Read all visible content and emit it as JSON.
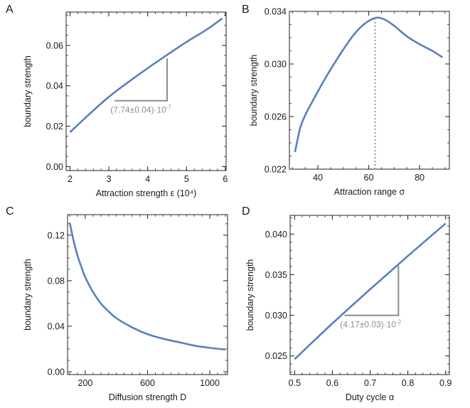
{
  "colors": {
    "curve": "#5b7fbf",
    "annotation": "#8c8c8c",
    "frame": "#222222",
    "text": "#1a1a1a"
  },
  "chart_data": [
    {
      "panel_label": "A",
      "type": "line",
      "xlabel": "Attraction strength  ε (10⁴)",
      "ylabel": "boundary strength",
      "xlim": [
        1.9,
        6.02
      ],
      "ylim": [
        -0.002,
        0.0765
      ],
      "xticks": [
        2,
        3,
        4,
        5,
        6
      ],
      "xtick_labels": [
        "2",
        "3",
        "4",
        "5",
        "6"
      ],
      "xminor": 0.2,
      "yticks": [
        0,
        0.02,
        0.04,
        0.06
      ],
      "ytick_labels": [
        "0.00",
        "0.02",
        "0.04",
        "0.06"
      ],
      "yminor": 0.005,
      "grid": false,
      "x": [
        2.0,
        2.5,
        3.0,
        3.5,
        4.0,
        4.5,
        5.0,
        5.5,
        5.92
      ],
      "y": [
        0.017,
        0.026,
        0.0345,
        0.0418,
        0.0487,
        0.0553,
        0.0617,
        0.0676,
        0.0733
      ],
      "annotation": {
        "text": "(7.74±0.04)·10",
        "exponent": "-7",
        "slope_triangle": {
          "x0": 3.15,
          "x1": 4.5,
          "y0": 0.0326,
          "y1": 0.0535
        }
      }
    },
    {
      "panel_label": "B",
      "type": "line",
      "xlabel": "Attraction range σ",
      "ylabel": "boundary strength",
      "xlim": [
        28.8,
        91.7
      ],
      "ylim": [
        0.022,
        0.034
      ],
      "xticks": [
        40,
        60,
        80
      ],
      "xtick_labels": [
        "40",
        "60",
        "80"
      ],
      "xminor": 5,
      "yticks": [
        0.022,
        0.026,
        0.03,
        0.034
      ],
      "ytick_labels": [
        "0.022",
        "0.026",
        "0.030",
        "0.034"
      ],
      "yminor": 0.001,
      "grid": false,
      "x": [
        31,
        33,
        35,
        38,
        42,
        46,
        50,
        54,
        58,
        62.5,
        66,
        70,
        75,
        80,
        85,
        89
      ],
      "y": [
        0.0233,
        0.0251,
        0.0261,
        0.0272,
        0.0286,
        0.0299,
        0.0311,
        0.0322,
        0.033,
        0.0335,
        0.0334,
        0.0329,
        0.0321,
        0.0315,
        0.031,
        0.0305
      ],
      "vline": {
        "x": 62.5,
        "style": "dotted"
      }
    },
    {
      "panel_label": "C",
      "type": "line",
      "xlabel": "Diffusion strength D",
      "ylabel": "boundary strength",
      "xlim": [
        86,
        1114
      ],
      "ylim": [
        -0.0025,
        0.138
      ],
      "xticks": [
        200,
        600,
        1000
      ],
      "xtick_labels": [
        "200",
        "600",
        "1000"
      ],
      "xminor": 50,
      "yticks": [
        0,
        0.04,
        0.08,
        0.12
      ],
      "ytick_labels": [
        "0.00",
        "0.04",
        "0.08",
        "0.12"
      ],
      "yminor": 0.01,
      "grid": false,
      "x": [
        100,
        125,
        150,
        175,
        200,
        250,
        300,
        350,
        400,
        500,
        600,
        700,
        800,
        900,
        1000,
        1100
      ],
      "y": [
        0.131,
        0.115,
        0.102,
        0.092,
        0.083,
        0.07,
        0.06,
        0.053,
        0.047,
        0.039,
        0.033,
        0.029,
        0.026,
        0.023,
        0.021,
        0.0195
      ]
    },
    {
      "panel_label": "D",
      "type": "line",
      "xlabel": "Duty cycle α",
      "ylabel": "boundary strength",
      "xlim": [
        0.488,
        0.91
      ],
      "ylim": [
        0.0227,
        0.0423
      ],
      "xticks": [
        0.5,
        0.6,
        0.7,
        0.8,
        0.9
      ],
      "xtick_labels": [
        "0.5",
        "0.6",
        "0.7",
        "0.8",
        "0.9"
      ],
      "xminor": 0.02,
      "yticks": [
        0.025,
        0.03,
        0.035,
        0.04
      ],
      "ytick_labels": [
        "0.025",
        "0.030",
        "0.035",
        "0.040"
      ],
      "yminor": 0.001,
      "grid": false,
      "x": [
        0.5,
        0.6,
        0.7,
        0.8,
        0.9
      ],
      "y": [
        0.0246,
        0.029,
        0.0332,
        0.0373,
        0.0413
      ],
      "annotation": {
        "text": "(4.17±0.03)·10",
        "exponent": "-2",
        "slope_triangle": {
          "x0": 0.632,
          "x1": 0.775,
          "y0": 0.03,
          "y1": 0.0361
        }
      }
    }
  ]
}
